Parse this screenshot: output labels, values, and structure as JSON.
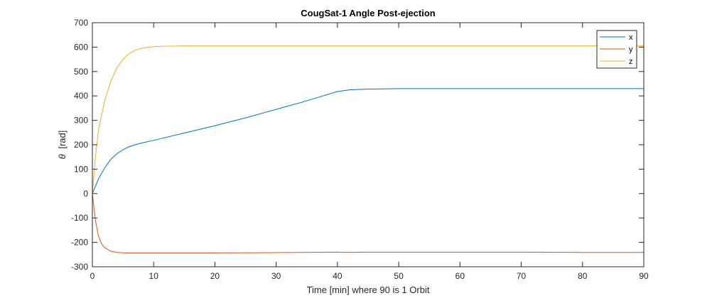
{
  "chart_data": {
    "type": "line",
    "title": "CougSat-1 Angle Post-ejection",
    "xlabel": "Time [min] where 90 is 1 Orbit",
    "ylabel_symbol": "θ",
    "ylabel_unit": "[rad]",
    "xlim": [
      0,
      90
    ],
    "ylim": [
      -300,
      700
    ],
    "xticks": [
      0,
      10,
      20,
      30,
      40,
      50,
      60,
      70,
      80,
      90
    ],
    "yticks": [
      -300,
      -200,
      -100,
      0,
      100,
      200,
      300,
      400,
      500,
      600,
      700
    ],
    "grid": false,
    "legend_position": "top-right",
    "series": [
      {
        "name": "x",
        "color": "#0072BD",
        "points": [
          [
            0,
            0
          ],
          [
            1,
            60
          ],
          [
            2,
            105
          ],
          [
            3,
            140
          ],
          [
            4,
            163
          ],
          [
            5,
            180
          ],
          [
            6,
            192
          ],
          [
            7,
            200
          ],
          [
            8,
            207
          ],
          [
            10,
            218
          ],
          [
            15,
            248
          ],
          [
            20,
            278
          ],
          [
            25,
            310
          ],
          [
            30,
            345
          ],
          [
            35,
            380
          ],
          [
            40,
            418
          ],
          [
            42,
            425
          ],
          [
            45,
            428
          ],
          [
            50,
            430
          ],
          [
            60,
            430
          ],
          [
            70,
            430
          ],
          [
            80,
            430
          ],
          [
            90,
            430
          ]
        ]
      },
      {
        "name": "y",
        "color": "#D95319",
        "points": [
          [
            0,
            0
          ],
          [
            0.5,
            -110
          ],
          [
            1,
            -175
          ],
          [
            1.5,
            -205
          ],
          [
            2,
            -222
          ],
          [
            3,
            -236
          ],
          [
            4,
            -241
          ],
          [
            5,
            -243
          ],
          [
            6,
            -243
          ],
          [
            10,
            -243
          ],
          [
            20,
            -243
          ],
          [
            30,
            -242
          ],
          [
            40,
            -240
          ],
          [
            41,
            -241
          ],
          [
            45,
            -240
          ],
          [
            50,
            -240
          ],
          [
            60,
            -240
          ],
          [
            70,
            -240
          ],
          [
            80,
            -241
          ],
          [
            90,
            -241
          ]
        ]
      },
      {
        "name": "z",
        "color": "#EDB120",
        "points": [
          [
            0,
            0
          ],
          [
            0.5,
            150
          ],
          [
            1,
            260
          ],
          [
            2,
            380
          ],
          [
            3,
            460
          ],
          [
            4,
            515
          ],
          [
            5,
            550
          ],
          [
            6,
            573
          ],
          [
            7,
            587
          ],
          [
            8,
            595
          ],
          [
            9,
            599
          ],
          [
            10,
            602
          ],
          [
            12,
            604
          ],
          [
            15,
            605
          ],
          [
            20,
            605
          ],
          [
            30,
            605
          ],
          [
            40,
            605
          ],
          [
            50,
            605
          ],
          [
            60,
            605
          ],
          [
            70,
            605
          ],
          [
            80,
            605
          ],
          [
            90,
            605
          ]
        ]
      }
    ]
  }
}
